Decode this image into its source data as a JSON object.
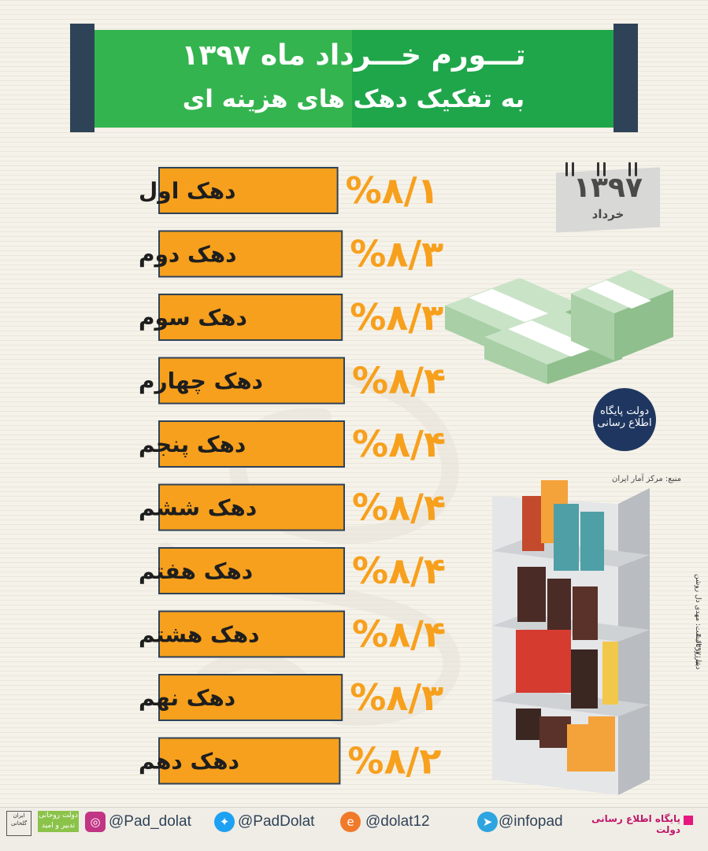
{
  "header": {
    "title_line1": "تـــورم خـــرداد ماه ۱۳۹۷",
    "title_line2": "به تفکیک دهک های هزینه ای"
  },
  "calendar": {
    "year": "۱۳۹۷",
    "month": "خرداد"
  },
  "chart_data": {
    "type": "bar",
    "orientation": "horizontal",
    "categories": [
      "دهک اول",
      "دهک دوم",
      "دهک سوم",
      "دهک چهارم",
      "دهک پنجم",
      "دهک ششم",
      "دهک هفتم",
      "دهک هشتم",
      "دهک نهم",
      "دهک دهم"
    ],
    "values": [
      8.1,
      8.3,
      8.3,
      8.4,
      8.4,
      8.4,
      8.4,
      8.4,
      8.3,
      8.2
    ],
    "value_labels": [
      "%۸/۱",
      "%۸/۳",
      "%۸/۳",
      "%۸/۴",
      "%۸/۴",
      "%۸/۴",
      "%۸/۴",
      "%۸/۴",
      "%۸/۳",
      "%۸/۲"
    ],
    "unit": "%",
    "bar_color": "#f7a01d",
    "label_color": "#f7a01d"
  },
  "logo": {
    "text": "دولت پایگاه اطلاع رسانی"
  },
  "credits": {
    "source": "منبع: مرکز آمار ایران",
    "designer": "دیتا ژورنالیست: مهدی دل روشن",
    "date": "۴ تیر ۱۳۹۷"
  },
  "footer": {
    "portal": "پایگاه اطلاع رسانی دولت",
    "telegram": "@infopad",
    "eitaa": "@dolat12",
    "twitter": "@PadDolat",
    "instagram": "@Pad_dolat",
    "gov_badge": "دولت روحانی تدبیر و امید",
    "emblem": "ایران گلخانی"
  },
  "colors": {
    "green": "#1fa64a",
    "navy": "#2f4358",
    "orange": "#f7a01d"
  }
}
